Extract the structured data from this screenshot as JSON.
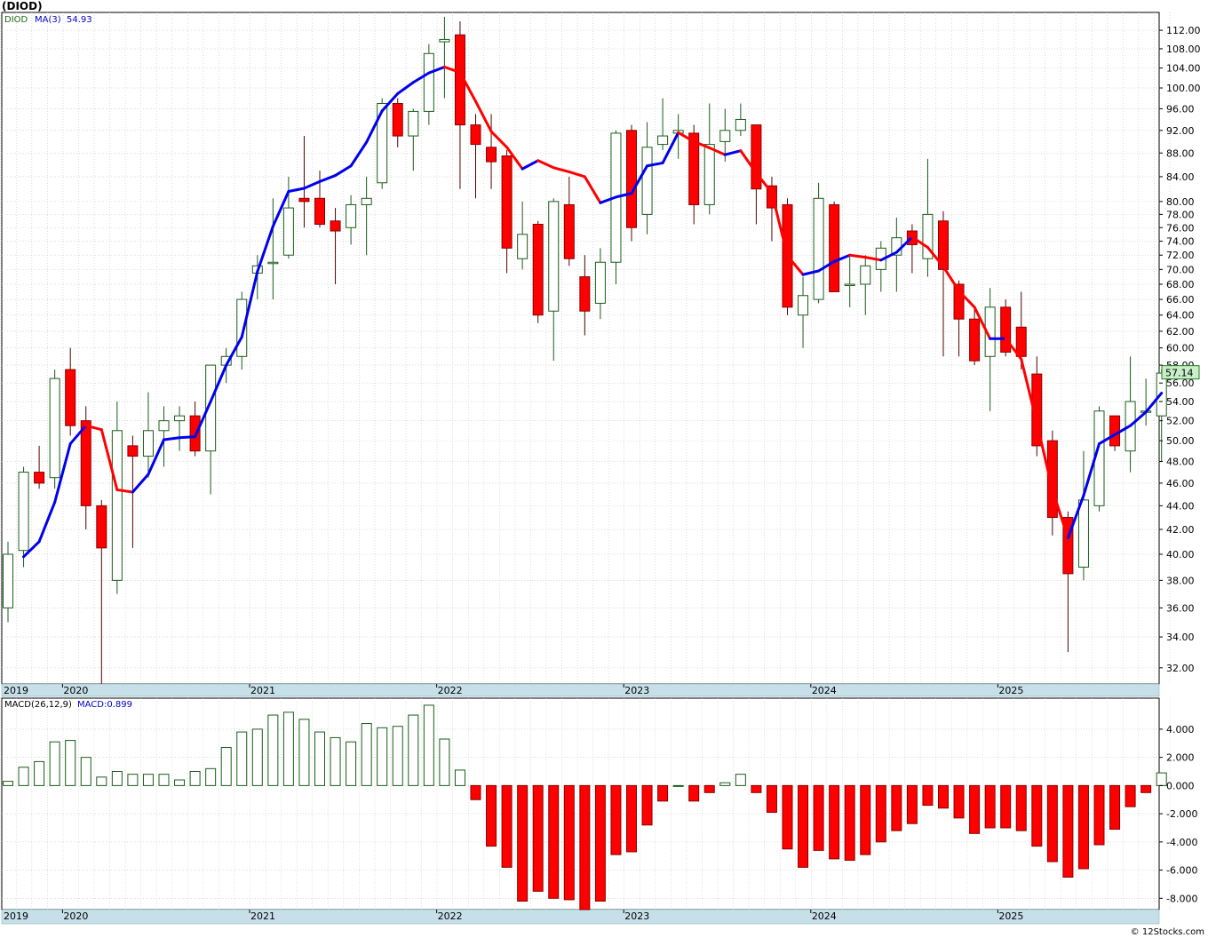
{
  "title": "(DIOD)",
  "credit": "© 12Stocks.com",
  "price_panel": {
    "legend_symbol": "DIOD",
    "legend_ma": "MA(3)",
    "legend_ma_value": "54.93",
    "last_price_label": "57.14",
    "y_ticks": [
      "32.00",
      "34.00",
      "36.00",
      "38.00",
      "40.00",
      "42.00",
      "44.00",
      "46.00",
      "48.00",
      "50.00",
      "52.00",
      "54.00",
      "56.00",
      "58.00",
      "60.00",
      "62.00",
      "64.00",
      "66.00",
      "68.00",
      "70.00",
      "72.00",
      "74.00",
      "76.00",
      "78.00",
      "80.00",
      "84.00",
      "88.00",
      "92.00",
      "96.00",
      "100.00",
      "104.00",
      "108.00",
      "112.00"
    ]
  },
  "macd_panel": {
    "legend_name": "MACD(26,12,9)",
    "legend_value": "MACD:0.899",
    "y_ticks": [
      "-8.000",
      "-6.000",
      "-4.000",
      "-2.000",
      "0.000",
      "2.000",
      "4.000"
    ]
  },
  "x_axis_labels": [
    "2019",
    "2020",
    "2021",
    "2022",
    "2023",
    "2024",
    "2025"
  ],
  "colors": {
    "up": "#1a5c1a",
    "down": "#ff0000",
    "ma_up": "#0000ee",
    "ma_down": "#ff0000",
    "axis_band": "#c6dfe8",
    "last_price_bg": "#c8f0c8"
  },
  "chart_data": [
    {
      "type": "candlestick",
      "title": "(DIOD)",
      "y_scale": "log",
      "ylim": [
        31,
        116
      ],
      "candles": [
        {
          "o": 36,
          "h": 41,
          "l": 35,
          "c": 40
        },
        {
          "o": 40.3,
          "h": 47.5,
          "l": 39,
          "c": 47
        },
        {
          "o": 47,
          "h": 49.5,
          "l": 45.5,
          "c": 46
        },
        {
          "o": 46.5,
          "h": 57.5,
          "l": 45.5,
          "c": 56.5
        },
        {
          "o": 57.5,
          "h": 60,
          "l": 50.5,
          "c": 51.5
        },
        {
          "o": 52,
          "h": 53.5,
          "l": 42,
          "c": 44
        },
        {
          "o": 44,
          "h": 44.5,
          "l": 31,
          "c": 40.5
        },
        {
          "o": 38,
          "h": 54,
          "l": 37,
          "c": 51
        },
        {
          "o": 49.5,
          "h": 50.5,
          "l": 40.5,
          "c": 48.5
        },
        {
          "o": 48.5,
          "h": 55,
          "l": 46.5,
          "c": 51
        },
        {
          "o": 51,
          "h": 53.5,
          "l": 47.5,
          "c": 52
        },
        {
          "o": 52,
          "h": 53.5,
          "l": 49,
          "c": 52.5
        },
        {
          "o": 52.5,
          "h": 54,
          "l": 48.5,
          "c": 49
        },
        {
          "o": 49,
          "h": 58,
          "l": 45,
          "c": 58
        },
        {
          "o": 58,
          "h": 60,
          "l": 56,
          "c": 59
        },
        {
          "o": 59,
          "h": 67,
          "l": 57.5,
          "c": 66
        },
        {
          "o": 69.5,
          "h": 72,
          "l": 66,
          "c": 70.5
        },
        {
          "o": 71,
          "h": 80.5,
          "l": 66,
          "c": 71
        },
        {
          "o": 72,
          "h": 84,
          "l": 71.5,
          "c": 79
        },
        {
          "o": 80.5,
          "h": 91,
          "l": 76,
          "c": 80
        },
        {
          "o": 80.5,
          "h": 85,
          "l": 76,
          "c": 76.5
        },
        {
          "o": 77,
          "h": 79,
          "l": 68,
          "c": 75.5
        },
        {
          "o": 76,
          "h": 81,
          "l": 73.5,
          "c": 79.5
        },
        {
          "o": 79.5,
          "h": 84,
          "l": 72,
          "c": 80.5
        },
        {
          "o": 83,
          "h": 98,
          "l": 82,
          "c": 97
        },
        {
          "o": 97,
          "h": 98,
          "l": 89,
          "c": 91
        },
        {
          "o": 91,
          "h": 96,
          "l": 85,
          "c": 95.5
        },
        {
          "o": 95.5,
          "h": 109,
          "l": 93,
          "c": 107
        },
        {
          "o": 109.5,
          "h": 115,
          "l": 98,
          "c": 110
        },
        {
          "o": 111,
          "h": 114,
          "l": 82,
          "c": 93
        },
        {
          "o": 93,
          "h": 95,
          "l": 80.5,
          "c": 89.5
        },
        {
          "o": 89,
          "h": 95,
          "l": 82,
          "c": 86.5
        },
        {
          "o": 87.5,
          "h": 88.5,
          "l": 69.5,
          "c": 73
        },
        {
          "o": 71.5,
          "h": 80,
          "l": 70,
          "c": 75
        },
        {
          "o": 76.5,
          "h": 77,
          "l": 63,
          "c": 64
        },
        {
          "o": 64.5,
          "h": 80.5,
          "l": 58.5,
          "c": 80
        },
        {
          "o": 79.5,
          "h": 84,
          "l": 70.5,
          "c": 71.5
        },
        {
          "o": 69,
          "h": 72,
          "l": 61.5,
          "c": 64.5
        },
        {
          "o": 65.5,
          "h": 73,
          "l": 63.5,
          "c": 71
        },
        {
          "o": 71,
          "h": 92,
          "l": 68,
          "c": 91.5
        },
        {
          "o": 92,
          "h": 93,
          "l": 74,
          "c": 76
        },
        {
          "o": 78,
          "h": 93.5,
          "l": 75,
          "c": 89
        },
        {
          "o": 89.5,
          "h": 98,
          "l": 88.5,
          "c": 91
        },
        {
          "o": 91.5,
          "h": 95,
          "l": 87,
          "c": 92
        },
        {
          "o": 91.5,
          "h": 93,
          "l": 76.5,
          "c": 79.5
        },
        {
          "o": 79.5,
          "h": 97,
          "l": 78,
          "c": 89.5
        },
        {
          "o": 90,
          "h": 96,
          "l": 86.5,
          "c": 92
        },
        {
          "o": 92,
          "h": 97,
          "l": 91,
          "c": 94
        },
        {
          "o": 93,
          "h": 93,
          "l": 76.5,
          "c": 82
        },
        {
          "o": 82.5,
          "h": 84,
          "l": 74,
          "c": 79
        },
        {
          "o": 79.5,
          "h": 80.5,
          "l": 64,
          "c": 65
        },
        {
          "o": 64,
          "h": 69,
          "l": 60,
          "c": 66.5
        },
        {
          "o": 66,
          "h": 83,
          "l": 65.5,
          "c": 80.5
        },
        {
          "o": 79.5,
          "h": 80,
          "l": 67,
          "c": 67
        },
        {
          "o": 68,
          "h": 72,
          "l": 65,
          "c": 68
        },
        {
          "o": 68,
          "h": 72,
          "l": 64,
          "c": 70.5
        },
        {
          "o": 70,
          "h": 74,
          "l": 67,
          "c": 73
        },
        {
          "o": 72,
          "h": 77.5,
          "l": 67,
          "c": 74.5
        },
        {
          "o": 75.5,
          "h": 76.5,
          "l": 69.5,
          "c": 73.5
        },
        {
          "o": 71.5,
          "h": 87,
          "l": 69,
          "c": 78
        },
        {
          "o": 77,
          "h": 78.5,
          "l": 59,
          "c": 70
        },
        {
          "o": 68,
          "h": 68.5,
          "l": 59,
          "c": 63.5
        },
        {
          "o": 63.5,
          "h": 65,
          "l": 58,
          "c": 58.5
        },
        {
          "o": 59,
          "h": 67.5,
          "l": 53,
          "c": 65
        },
        {
          "o": 65,
          "h": 66,
          "l": 59,
          "c": 59.5
        },
        {
          "o": 62.5,
          "h": 67,
          "l": 57.5,
          "c": 59
        },
        {
          "o": 57,
          "h": 59,
          "l": 48.5,
          "c": 49.5
        },
        {
          "o": 50,
          "h": 51,
          "l": 41.5,
          "c": 43
        },
        {
          "o": 43,
          "h": 43.5,
          "l": 33,
          "c": 38.5
        },
        {
          "o": 39,
          "h": 49,
          "l": 38,
          "c": 44.5
        },
        {
          "o": 44,
          "h": 53.5,
          "l": 43.5,
          "c": 53
        },
        {
          "o": 52.5,
          "h": 52.5,
          "l": 49,
          "c": 49.5
        },
        {
          "o": 49,
          "h": 59,
          "l": 47,
          "c": 54
        },
        {
          "o": 53,
          "h": 56.5,
          "l": 51.5,
          "c": 53
        },
        {
          "o": 52.5,
          "h": 57.5,
          "l": 48,
          "c": 57.1
        }
      ],
      "ma3": [
        null,
        39.8,
        41.0,
        44.3,
        49.7,
        51.5,
        51.1,
        45.4,
        45.2,
        46.8,
        50.1,
        50.3,
        50.4,
        54.0,
        58.0,
        61.3,
        69.7,
        76.2,
        81.6,
        82.1,
        83.2,
        84.2,
        85.8,
        89.9,
        95.6,
        98.9,
        101.1,
        103.0,
        104.2,
        103.1,
        97.4,
        91.8,
        89.0,
        85.3,
        86.7,
        85.5,
        84.8,
        84.0,
        79.8,
        80.7,
        81.3,
        85.8,
        86.3,
        91.6,
        90.0,
        88.9,
        87.7,
        88.4,
        84.6,
        81.4,
        71.9,
        69.3,
        69.8,
        71.1,
        72.0,
        71.7,
        71.3,
        72.4,
        74.6,
        73.1,
        70.4,
        67.1,
        65.0,
        61.1,
        61.1,
        58.7,
        51.8,
        45.4,
        41.3,
        44.9,
        49.7,
        50.6,
        51.5,
        52.9,
        54.9
      ]
    },
    {
      "type": "bar",
      "title": "MACD(26,12,9)",
      "ylim": [
        -8.8,
        6.2
      ],
      "values": [
        0.3,
        1.3,
        1.7,
        3.1,
        3.2,
        2.0,
        0.6,
        1.0,
        0.8,
        0.8,
        0.8,
        0.4,
        1.0,
        1.2,
        2.7,
        3.8,
        4.0,
        5.0,
        5.2,
        4.7,
        3.8,
        3.4,
        3.1,
        4.4,
        4.1,
        4.2,
        5.0,
        5.7,
        3.3,
        1.1,
        -1.0,
        -4.3,
        -5.8,
        -8.2,
        -7.5,
        -8.0,
        -8.1,
        -8.8,
        -8.2,
        -4.9,
        -4.7,
        -2.8,
        -1.1,
        0.0,
        -1.1,
        -0.5,
        0.2,
        0.8,
        -0.5,
        -1.9,
        -4.5,
        -5.8,
        -4.6,
        -5.2,
        -5.3,
        -4.9,
        -4.0,
        -3.2,
        -2.7,
        -1.4,
        -1.6,
        -2.3,
        -3.4,
        -3.0,
        -3.0,
        -3.2,
        -4.3,
        -5.4,
        -6.5,
        -5.9,
        -4.2,
        -3.1,
        -1.5,
        -0.5,
        0.899
      ]
    }
  ]
}
